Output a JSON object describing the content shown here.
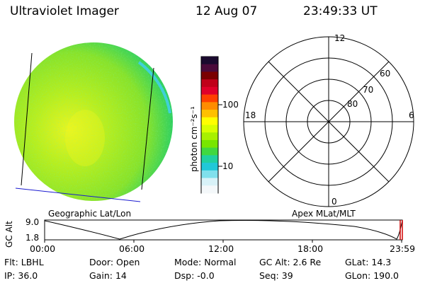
{
  "header": {
    "instrument": "Ultraviolet Imager",
    "date": "12 Aug 07",
    "time": "23:49:33 UT"
  },
  "colorbar": {
    "unit_label": "photon cm⁻²s⁻¹",
    "ticks": [
      "100",
      "10"
    ],
    "colors": [
      "#1a0a2e",
      "#4a0a3a",
      "#7a0000",
      "#c0001a",
      "#e0002a",
      "#ff4000",
      "#ff8c00",
      "#ffc000",
      "#ffff00",
      "#d8ff00",
      "#a8f000",
      "#78e600",
      "#40d840",
      "#20d0a0",
      "#20c8d8",
      "#80e0ec",
      "#d8f2f8",
      "#f4f8fa"
    ]
  },
  "left_panel": {
    "label": "Geographic Lat/Lon",
    "disk_colors": {
      "base": "#9ee61e",
      "bright": "#e6f51e",
      "edge": "#30d060",
      "limb": "#40d0d8"
    }
  },
  "right_panel": {
    "label": "Apex MLat/MLT",
    "mlt_labels": [
      "12",
      "18",
      "6",
      "0"
    ],
    "lat_labels": [
      "60",
      "70",
      "80"
    ]
  },
  "altitude_strip": {
    "axis_label": "GC Alt",
    "y_ticks": [
      "9.0",
      "1.8"
    ],
    "x_ticks": [
      "00:00",
      "06:00",
      "12:00",
      "18:00",
      "23:59"
    ]
  },
  "info": {
    "row1": [
      {
        "key": "Flt:",
        "value": "LBHL"
      },
      {
        "key": "Door:",
        "value": "Open"
      },
      {
        "key": "Mode:",
        "value": "Normal"
      },
      {
        "key": "GC Alt:",
        "value": "2.6 Re"
      },
      {
        "key": "GLat:",
        "value": "14.3"
      }
    ],
    "row2": [
      {
        "key": "IP:",
        "value": "36.0"
      },
      {
        "key": "Gain:",
        "value": "14"
      },
      {
        "key": "Dsp:",
        "value": "-0.0"
      },
      {
        "key": "Seq:",
        "value": "39"
      },
      {
        "key": "GLon:",
        "value": "190.0"
      }
    ]
  }
}
